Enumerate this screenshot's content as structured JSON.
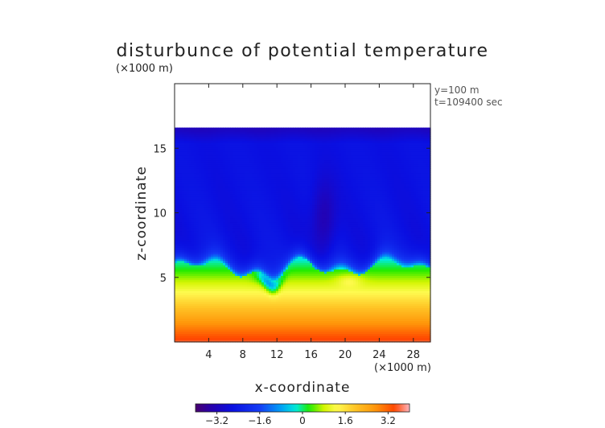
{
  "chart_data": {
    "type": "heatmap",
    "title": "disturbunce of potential temperature",
    "xlabel": "x-coordinate",
    "ylabel": "z-coordinate",
    "x_unit": "(×1000 m)",
    "y_unit": "(×1000 m)",
    "annotations": [
      "y=100 m",
      "t=109400 sec"
    ],
    "xlim": [
      0,
      30
    ],
    "ylim": [
      0,
      20
    ],
    "x_ticks": [
      4,
      8,
      12,
      16,
      20,
      24,
      28
    ],
    "y_ticks": [
      5,
      10,
      15
    ],
    "colorbar": {
      "range": [
        -4,
        4
      ],
      "ticks": [
        -3.2,
        -1.6,
        0,
        1.6,
        3.2
      ],
      "tick_labels": [
        "−3.2",
        "−1.6",
        "0",
        "1.6",
        "3.2"
      ]
    },
    "field": {
      "top_of_data_z": 16.6,
      "upper_layer_value": -2.6,
      "inversion_z": 5.8,
      "surface_value": 3.6,
      "cold_pool_x": 17.5,
      "cold_pool_z": 9.5,
      "cold_pool_value": -3.4,
      "warm_eddy_x": 20.5,
      "warm_eddy_z": 4.8
    }
  }
}
